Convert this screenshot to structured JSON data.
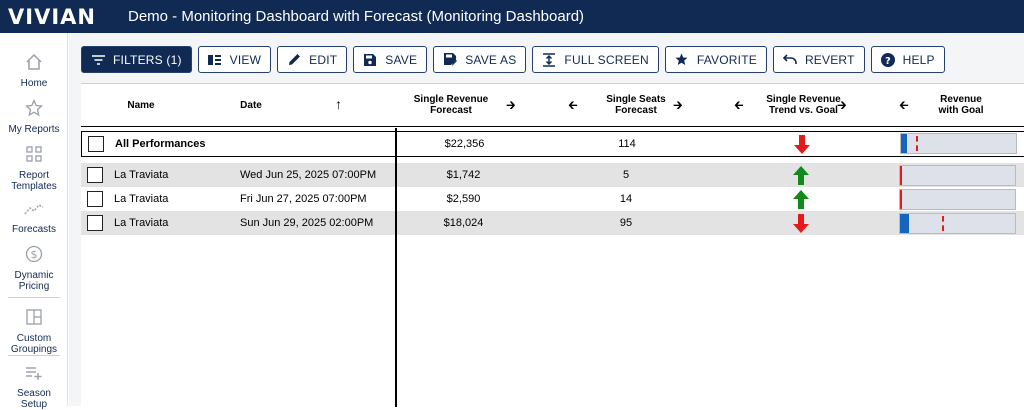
{
  "header": {
    "logo": "VIVIAN",
    "title": "Demo - Monitoring Dashboard with Forecast (Monitoring Dashboard)"
  },
  "sidebar": {
    "items": [
      {
        "label_lines": [
          "Home"
        ],
        "icon": "home-icon"
      },
      {
        "label_lines": [
          "My Reports"
        ],
        "icon": "star-icon"
      },
      {
        "label_lines": [
          "Report",
          "Templates"
        ],
        "icon": "grid-icon"
      },
      {
        "label_lines": [
          "Forecasts"
        ],
        "icon": "trend-icon"
      },
      {
        "label_lines": [
          "Dynamic",
          "Pricing"
        ],
        "icon": "dollar-icon"
      },
      {
        "label_lines": [
          "Custom",
          "Groupings"
        ],
        "icon": "layout-icon"
      },
      {
        "label_lines": [
          "Season",
          "Setup"
        ],
        "icon": "list-add-icon"
      }
    ]
  },
  "toolbar": {
    "filters": "FILTERS (1)",
    "view": "VIEW",
    "edit": "EDIT",
    "save": "SAVE",
    "save_as": "SAVE AS",
    "full_screen": "FULL SCREEN",
    "favorite": "FAVORITE",
    "revert": "REVERT",
    "help": "HELP"
  },
  "table": {
    "headers": {
      "name": "Name",
      "date": "Date",
      "rev_forecast_1": "Single Revenue",
      "rev_forecast_2": "Forecast",
      "seats_1": "Single Seats",
      "seats_2": "Forecast",
      "trend_1": "Single Revenue",
      "trend_2": "Trend vs. Goal",
      "goal_1": "Revenue",
      "goal_2": "with Goal"
    },
    "total": {
      "name": "All Performances",
      "revenue": "$22,356",
      "seats": "114",
      "trend": "down",
      "bar_fill": 0.05,
      "goal_mark": 0.08
    },
    "rows": [
      {
        "name": "La Traviata",
        "date": "Wed Jun 25, 2025 07:00PM",
        "revenue": "$1,742",
        "seats": "5",
        "trend": "up",
        "bar_fill": 0.02,
        "goal_mark": 0.0
      },
      {
        "name": "La Traviata",
        "date": "Fri Jun 27, 2025 07:00PM",
        "revenue": "$2,590",
        "seats": "14",
        "trend": "up",
        "bar_fill": 0.02,
        "goal_mark": 0.0
      },
      {
        "name": "La Traviata",
        "date": "Sun Jun 29, 2025 02:00PM",
        "revenue": "$18,024",
        "seats": "95",
        "trend": "down",
        "bar_fill": 0.08,
        "goal_mark": 0.31
      }
    ]
  },
  "colors": {
    "navy": "#102a54",
    "up": "#118a1b",
    "down": "#e41b1b",
    "bar": "#1565c0"
  }
}
